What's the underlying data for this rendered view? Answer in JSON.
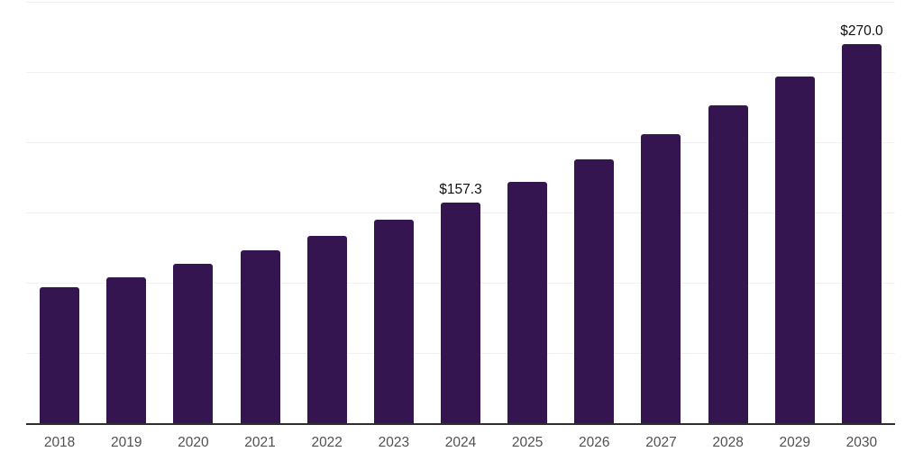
{
  "chart_data": {
    "type": "bar",
    "title": "",
    "xlabel": "",
    "ylabel": "",
    "categories": [
      "2018",
      "2019",
      "2020",
      "2021",
      "2022",
      "2023",
      "2024",
      "2025",
      "2026",
      "2027",
      "2028",
      "2029",
      "2030"
    ],
    "values": [
      96.8,
      103.8,
      113.5,
      123.1,
      133.3,
      145.0,
      157.3,
      171.8,
      187.8,
      205.8,
      226.3,
      247.0,
      270.0
    ],
    "data_labels": [
      {
        "category": "2024",
        "text": "$157.3"
      },
      {
        "category": "2030",
        "text": "$270.0"
      }
    ],
    "ylim": [
      0,
      300
    ],
    "grid_step": 50,
    "grid": "horizontal-only",
    "legend": "none",
    "y_axis_tick_labels": "none"
  },
  "colors": {
    "bar": "#351550",
    "gridline": "#f1f1f3",
    "axis_line": "#2e2e2e",
    "tick_label": "#515154",
    "data_label": "#101010",
    "background": "#ffffff"
  }
}
